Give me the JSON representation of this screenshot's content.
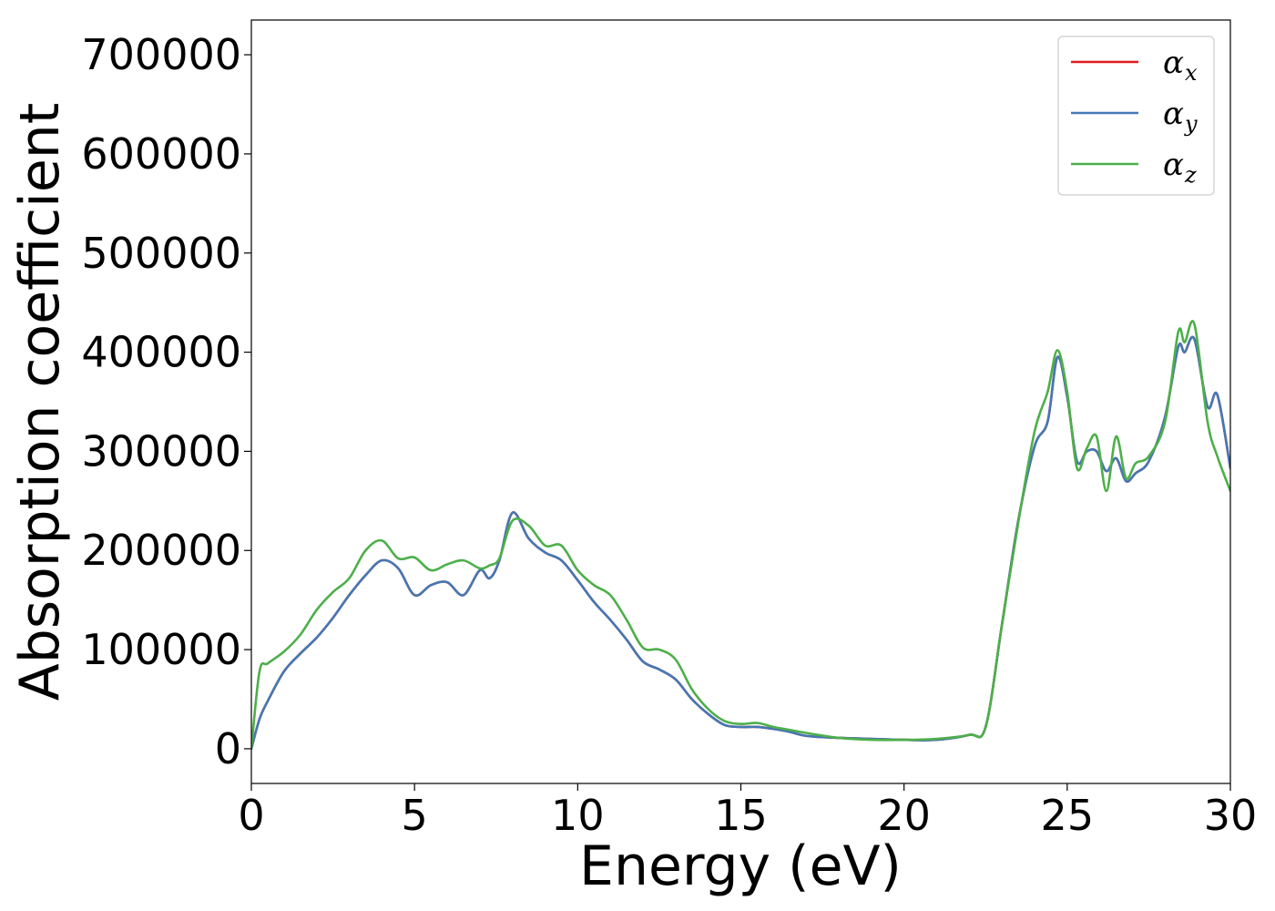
{
  "chart_data": {
    "type": "line",
    "xlabel": "Energy (eV)",
    "ylabel": "Absorption coefficient",
    "xlim": [
      0,
      30
    ],
    "ylim": [
      -35000,
      735000
    ],
    "xticks": [
      0,
      5,
      10,
      15,
      20,
      25,
      30
    ],
    "xtick_labels": [
      "0",
      "5",
      "10",
      "15",
      "20",
      "25",
      "30"
    ],
    "yticks": [
      0,
      100000,
      200000,
      300000,
      400000,
      500000,
      600000,
      700000
    ],
    "ytick_labels": [
      "0",
      "100000",
      "200000",
      "300000",
      "400000",
      "500000",
      "600000",
      "700000"
    ],
    "grid": false,
    "legend_position": "top-right",
    "series": [
      {
        "name": "α",
        "subscript": "x",
        "color": "#e41a1c",
        "x": [
          0,
          0.25,
          0.5,
          1.0,
          1.5,
          2.0,
          2.5,
          3.0,
          3.5,
          4.0,
          4.5,
          5.0,
          5.5,
          6.0,
          6.5,
          7.0,
          7.3,
          7.6,
          8.0,
          8.5,
          9.0,
          9.5,
          10.0,
          10.5,
          11.0,
          11.5,
          12.0,
          12.5,
          13.0,
          13.5,
          14.0,
          14.5,
          15.0,
          15.5,
          16.0,
          16.5,
          17.0,
          18.0,
          19.0,
          20.0,
          21.0,
          22.0,
          22.5,
          23.0,
          23.5,
          24.0,
          24.4,
          24.7,
          25.0,
          25.3,
          25.6,
          25.9,
          26.2,
          26.5,
          26.8,
          27.1,
          27.5,
          28.0,
          28.4,
          28.6,
          28.9,
          29.3,
          29.6,
          30.0
        ],
        "y": [
          0,
          30000,
          48000,
          78000,
          96000,
          112000,
          132000,
          155000,
          175000,
          190000,
          182000,
          155000,
          165000,
          168000,
          155000,
          180000,
          172000,
          190000,
          238000,
          212000,
          198000,
          190000,
          170000,
          148000,
          130000,
          110000,
          88000,
          80000,
          70000,
          50000,
          35000,
          24000,
          22000,
          22000,
          20000,
          17000,
          13000,
          11000,
          10000,
          9000,
          9000,
          14000,
          22000,
          125000,
          230000,
          305000,
          330000,
          395000,
          355000,
          290000,
          300000,
          300000,
          280000,
          293000,
          270000,
          278000,
          290000,
          335000,
          405000,
          400000,
          413000,
          345000,
          357000,
          283000
        ]
      },
      {
        "name": "α",
        "subscript": "y",
        "color": "#4478b4",
        "x": [
          0,
          0.25,
          0.5,
          1.0,
          1.5,
          2.0,
          2.5,
          3.0,
          3.5,
          4.0,
          4.5,
          5.0,
          5.5,
          6.0,
          6.5,
          7.0,
          7.3,
          7.6,
          8.0,
          8.5,
          9.0,
          9.5,
          10.0,
          10.5,
          11.0,
          11.5,
          12.0,
          12.5,
          13.0,
          13.5,
          14.0,
          14.5,
          15.0,
          15.5,
          16.0,
          16.5,
          17.0,
          18.0,
          19.0,
          20.0,
          21.0,
          22.0,
          22.5,
          23.0,
          23.5,
          24.0,
          24.4,
          24.7,
          25.0,
          25.3,
          25.6,
          25.9,
          26.2,
          26.5,
          26.8,
          27.1,
          27.5,
          28.0,
          28.4,
          28.6,
          28.9,
          29.3,
          29.6,
          30.0
        ],
        "y": [
          0,
          30000,
          48000,
          78000,
          96000,
          112000,
          132000,
          155000,
          175000,
          190000,
          182000,
          155000,
          165000,
          168000,
          155000,
          180000,
          172000,
          190000,
          238000,
          212000,
          198000,
          190000,
          170000,
          148000,
          130000,
          110000,
          88000,
          80000,
          70000,
          50000,
          35000,
          24000,
          22000,
          22000,
          20000,
          17000,
          13000,
          11000,
          10000,
          9000,
          9000,
          14000,
          22000,
          125000,
          230000,
          305000,
          330000,
          395000,
          355000,
          290000,
          300000,
          300000,
          280000,
          293000,
          270000,
          278000,
          290000,
          335000,
          405000,
          400000,
          413000,
          345000,
          357000,
          283000
        ]
      },
      {
        "name": "α",
        "subscript": "z",
        "color": "#4daf4a",
        "x": [
          0,
          0.25,
          0.5,
          1.0,
          1.5,
          2.0,
          2.5,
          3.0,
          3.5,
          4.0,
          4.5,
          5.0,
          5.5,
          6.0,
          6.5,
          7.0,
          7.3,
          7.6,
          8.0,
          8.5,
          9.0,
          9.5,
          10.0,
          10.5,
          11.0,
          11.5,
          12.0,
          12.5,
          13.0,
          13.5,
          14.0,
          14.5,
          15.0,
          15.5,
          16.0,
          16.5,
          17.0,
          18.0,
          19.0,
          20.0,
          21.0,
          22.0,
          22.5,
          23.0,
          23.5,
          24.0,
          24.4,
          24.7,
          25.0,
          25.3,
          25.6,
          25.9,
          26.2,
          26.5,
          26.8,
          27.1,
          27.5,
          28.0,
          28.4,
          28.6,
          28.9,
          29.3,
          29.6,
          30.0
        ],
        "y": [
          0,
          78000,
          86000,
          98000,
          115000,
          140000,
          158000,
          172000,
          200000,
          210000,
          192000,
          193000,
          180000,
          186000,
          190000,
          182000,
          185000,
          192000,
          230000,
          225000,
          205000,
          205000,
          180000,
          165000,
          155000,
          130000,
          102000,
          100000,
          90000,
          60000,
          40000,
          28000,
          25000,
          26000,
          22000,
          19000,
          16000,
          11000,
          9000,
          9000,
          10000,
          14000,
          22000,
          125000,
          228000,
          320000,
          360000,
          402000,
          360000,
          283000,
          303000,
          315000,
          260000,
          315000,
          273000,
          288000,
          295000,
          330000,
          420000,
          410000,
          428000,
          330000,
          295000,
          260000
        ]
      }
    ]
  }
}
